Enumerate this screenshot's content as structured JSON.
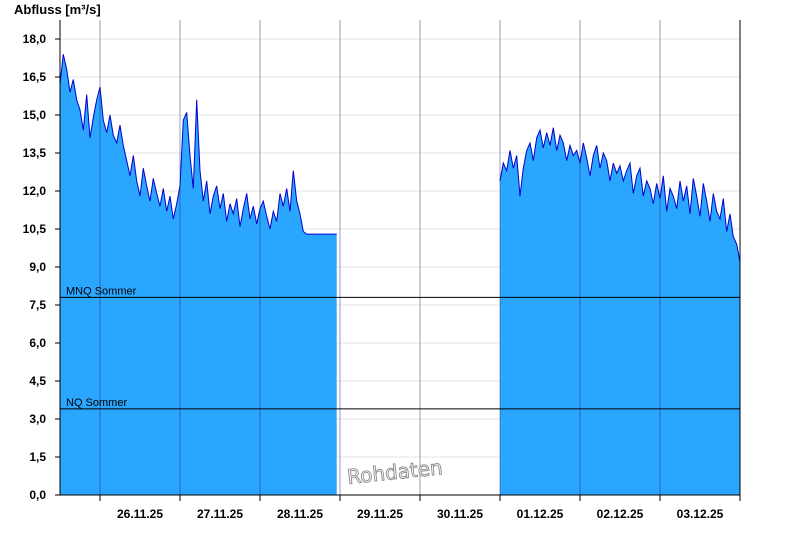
{
  "chart_data": {
    "type": "area",
    "title": "",
    "ylabel": "Abfluss [m³/s]",
    "xlabel": "",
    "ylim": [
      0,
      18.75
    ],
    "y_ticks": [
      "0,0",
      "1,5",
      "3,0",
      "4,5",
      "6,0",
      "7,5",
      "9,0",
      "10,5",
      "12,0",
      "13,5",
      "15,0",
      "16,5",
      "18,0"
    ],
    "x_ticks": [
      "26.11.25",
      "27.11.25",
      "28.11.25",
      "29.11.25",
      "30.11.25",
      "01.12.25",
      "02.12.25",
      "03.12.25"
    ],
    "x_range_days": [
      "25.11.25 12:00",
      "04.12.25 00:00"
    ],
    "grid": true,
    "colors": {
      "fill": "#2aa6ff",
      "line": "#0000cc",
      "ref": "#000000",
      "grid": "#e4e4e4"
    },
    "reference_lines": [
      {
        "label": "MNQ Sommer",
        "value": 7.8
      },
      {
        "label": "NQ Sommer",
        "value": 3.4
      }
    ],
    "watermark": "Rohdaten",
    "series": [
      {
        "segment": 1,
        "x": [
          "25.11.25 12:00",
          "25.11.25 13:00",
          "25.11.25 14:00",
          "25.11.25 15:00",
          "25.11.25 16:00",
          "25.11.25 17:00",
          "25.11.25 18:00",
          "25.11.25 19:00",
          "25.11.25 20:00",
          "25.11.25 21:00",
          "25.11.25 22:00",
          "25.11.25 23:00",
          "26.11.25 00:00",
          "26.11.25 01:00",
          "26.11.25 02:00",
          "26.11.25 03:00",
          "26.11.25 04:00",
          "26.11.25 05:00",
          "26.11.25 06:00",
          "26.11.25 07:00",
          "26.11.25 08:00",
          "26.11.25 09:00",
          "26.11.25 10:00",
          "26.11.25 11:00",
          "26.11.25 12:00",
          "26.11.25 13:00",
          "26.11.25 14:00",
          "26.11.25 15:00",
          "26.11.25 16:00",
          "26.11.25 17:00",
          "26.11.25 18:00",
          "26.11.25 19:00",
          "26.11.25 20:00",
          "26.11.25 21:00",
          "26.11.25 22:00",
          "26.11.25 23:00",
          "27.11.25 00:00",
          "27.11.25 01:00",
          "27.11.25 02:00",
          "27.11.25 03:00",
          "27.11.25 04:00",
          "27.11.25 05:00",
          "27.11.25 06:00",
          "27.11.25 07:00",
          "27.11.25 08:00",
          "27.11.25 09:00",
          "27.11.25 10:00",
          "27.11.25 11:00",
          "27.11.25 12:00",
          "27.11.25 13:00",
          "27.11.25 14:00",
          "27.11.25 15:00",
          "27.11.25 16:00",
          "27.11.25 17:00",
          "27.11.25 18:00",
          "27.11.25 19:00",
          "27.11.25 20:00",
          "27.11.25 21:00",
          "27.11.25 22:00",
          "27.11.25 23:00",
          "28.11.25 00:00",
          "28.11.25 01:00",
          "28.11.25 02:00",
          "28.11.25 03:00",
          "28.11.25 04:00",
          "28.11.25 05:00",
          "28.11.25 06:00",
          "28.11.25 07:00",
          "28.11.25 08:00",
          "28.11.25 09:00",
          "28.11.25 10:00",
          "28.11.25 11:00",
          "28.11.25 12:00",
          "28.11.25 13:00",
          "28.11.25 14:00",
          "28.11.25 15:00",
          "28.11.25 16:00",
          "28.11.25 17:00",
          "28.11.25 18:00",
          "28.11.25 19:00",
          "28.11.25 20:00",
          "28.11.25 21:00",
          "28.11.25 22:00",
          "28.11.25 23:00"
        ],
        "y": [
          16.2,
          17.4,
          16.8,
          15.9,
          16.4,
          15.6,
          15.2,
          14.4,
          15.8,
          14.1,
          14.9,
          15.6,
          16.1,
          14.8,
          14.3,
          15.0,
          14.2,
          13.9,
          14.6,
          13.8,
          13.2,
          12.6,
          13.4,
          12.4,
          11.8,
          12.9,
          12.2,
          11.6,
          12.5,
          11.9,
          11.4,
          12.1,
          11.2,
          11.8,
          10.9,
          11.5,
          12.2,
          14.8,
          15.1,
          13.4,
          12.1,
          15.6,
          12.8,
          11.6,
          12.4,
          11.1,
          11.8,
          12.2,
          11.3,
          11.9,
          10.8,
          11.5,
          11.1,
          11.7,
          10.6,
          11.3,
          11.9,
          10.9,
          11.4,
          10.7,
          11.3,
          11.6,
          11.0,
          10.5,
          11.2,
          10.8,
          11.9,
          11.4,
          12.1,
          11.2,
          12.8,
          11.6,
          11.1,
          10.4,
          10.3,
          10.3,
          10.3,
          10.3,
          10.3,
          10.3,
          10.3,
          10.3,
          10.3,
          10.3
        ]
      },
      {
        "segment": 2,
        "x": [
          "01.12.25 00:00",
          "01.12.25 01:00",
          "01.12.25 02:00",
          "01.12.25 03:00",
          "01.12.25 04:00",
          "01.12.25 05:00",
          "01.12.25 06:00",
          "01.12.25 07:00",
          "01.12.25 08:00",
          "01.12.25 09:00",
          "01.12.25 10:00",
          "01.12.25 11:00",
          "01.12.25 12:00",
          "01.12.25 13:00",
          "01.12.25 14:00",
          "01.12.25 15:00",
          "01.12.25 16:00",
          "01.12.25 17:00",
          "01.12.25 18:00",
          "01.12.25 19:00",
          "01.12.25 20:00",
          "01.12.25 21:00",
          "01.12.25 22:00",
          "01.12.25 23:00",
          "02.12.25 00:00",
          "02.12.25 01:00",
          "02.12.25 02:00",
          "02.12.25 03:00",
          "02.12.25 04:00",
          "02.12.25 05:00",
          "02.12.25 06:00",
          "02.12.25 07:00",
          "02.12.25 08:00",
          "02.12.25 09:00",
          "02.12.25 10:00",
          "02.12.25 11:00",
          "02.12.25 12:00",
          "02.12.25 13:00",
          "02.12.25 14:00",
          "02.12.25 15:00",
          "02.12.25 16:00",
          "02.12.25 17:00",
          "02.12.25 18:00",
          "02.12.25 19:00",
          "02.12.25 20:00",
          "02.12.25 21:00",
          "02.12.25 22:00",
          "02.12.25 23:00",
          "03.12.25 00:00",
          "03.12.25 01:00",
          "03.12.25 02:00",
          "03.12.25 03:00",
          "03.12.25 04:00",
          "03.12.25 05:00",
          "03.12.25 06:00",
          "03.12.25 07:00",
          "03.12.25 08:00",
          "03.12.25 09:00",
          "03.12.25 10:00",
          "03.12.25 11:00",
          "03.12.25 12:00",
          "03.12.25 13:00",
          "03.12.25 14:00",
          "03.12.25 15:00",
          "03.12.25 16:00",
          "03.12.25 17:00",
          "03.12.25 18:00",
          "03.12.25 19:00",
          "03.12.25 20:00",
          "03.12.25 21:00",
          "03.12.25 22:00",
          "03.12.25 23:00",
          "04.12.25 00:00"
        ],
        "y": [
          12.4,
          13.1,
          12.8,
          13.6,
          12.9,
          13.4,
          11.8,
          12.9,
          13.6,
          13.9,
          13.2,
          14.1,
          14.4,
          13.7,
          14.3,
          13.8,
          14.5,
          13.6,
          14.2,
          13.9,
          13.2,
          13.8,
          13.4,
          13.6,
          13.1,
          13.9,
          13.3,
          12.6,
          13.4,
          13.8,
          12.9,
          13.5,
          13.2,
          12.4,
          13.1,
          12.7,
          13.0,
          12.4,
          12.8,
          13.1,
          11.9,
          12.6,
          12.9,
          11.8,
          12.4,
          12.1,
          11.5,
          12.3,
          11.7,
          12.6,
          11.2,
          12.1,
          11.8,
          11.3,
          12.4,
          11.6,
          12.2,
          11.1,
          12.5,
          11.8,
          11.0,
          12.3,
          11.6,
          10.8,
          11.9,
          11.2,
          10.9,
          11.7,
          10.4,
          11.1,
          10.2,
          9.9,
          9.2
        ]
      }
    ]
  }
}
